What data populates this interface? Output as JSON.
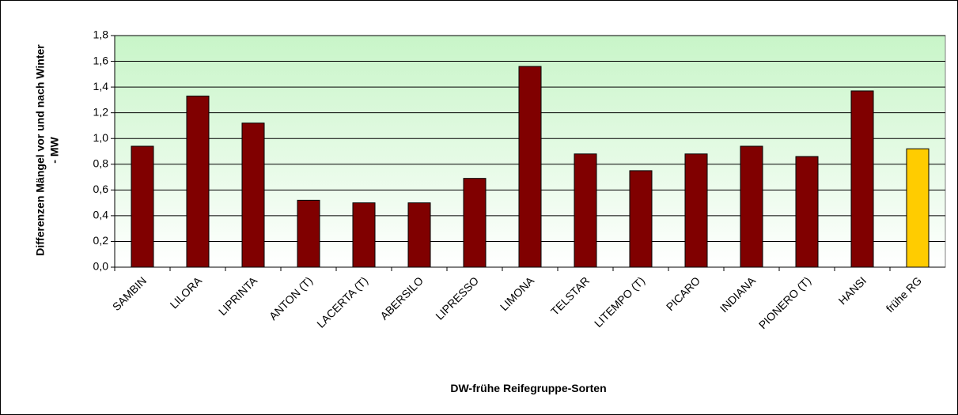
{
  "chart_data": {
    "type": "bar",
    "xlabel": "DW-frühe Reifegruppe-Sorten",
    "ylabel": [
      "Differenzen Mängel vor und nach Winter",
      "- MW"
    ],
    "categories": [
      "SAMBIN",
      "LILORA",
      "LIPRINTA",
      "ANTON (T)",
      "LACERTA (T)",
      "ABERSILO",
      "LIPRESSO",
      "LIMONA",
      "TELSTAR",
      "LITEMPO (T)",
      "PICARO",
      "INDIANA",
      "PIONERO (T)",
      "HANSI",
      "frühe RG"
    ],
    "values": [
      0.94,
      1.33,
      1.12,
      0.52,
      0.5,
      0.5,
      0.69,
      1.56,
      0.88,
      0.75,
      0.88,
      0.94,
      0.86,
      1.37,
      0.92
    ],
    "colors": [
      "#800000",
      "#800000",
      "#800000",
      "#800000",
      "#800000",
      "#800000",
      "#800000",
      "#800000",
      "#800000",
      "#800000",
      "#800000",
      "#800000",
      "#800000",
      "#800000",
      "#ffcc00"
    ],
    "ylim": [
      0,
      1.8
    ],
    "yticks": [
      {
        "value": 0,
        "label": "0,0"
      },
      {
        "value": 0.2,
        "label": "0,2"
      },
      {
        "value": 0.4,
        "label": "0,4"
      },
      {
        "value": 0.6,
        "label": "0,6"
      },
      {
        "value": 0.8,
        "label": "0,8"
      },
      {
        "value": 1.0,
        "label": "1,0"
      },
      {
        "value": 1.2,
        "label": "1,2"
      },
      {
        "value": 1.4,
        "label": "1,4"
      },
      {
        "value": 1.6,
        "label": "1,6"
      },
      {
        "value": 1.8,
        "label": "1,8"
      }
    ],
    "grid": true
  }
}
